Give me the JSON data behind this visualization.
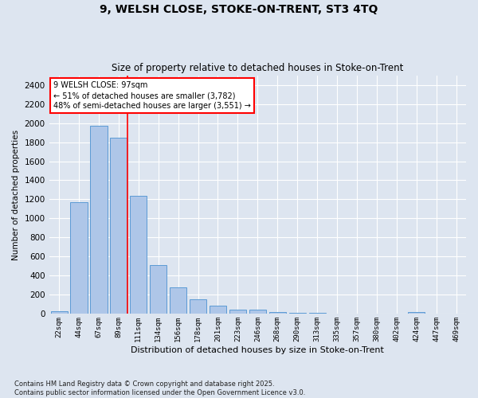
{
  "title_line1": "9, WELSH CLOSE, STOKE-ON-TRENT, ST3 4TQ",
  "title_line2": "Size of property relative to detached houses in Stoke-on-Trent",
  "xlabel": "Distribution of detached houses by size in Stoke-on-Trent",
  "ylabel": "Number of detached properties",
  "categories": [
    "22sqm",
    "44sqm",
    "67sqm",
    "89sqm",
    "111sqm",
    "134sqm",
    "156sqm",
    "178sqm",
    "201sqm",
    "223sqm",
    "246sqm",
    "268sqm",
    "290sqm",
    "313sqm",
    "335sqm",
    "357sqm",
    "380sqm",
    "402sqm",
    "424sqm",
    "447sqm",
    "469sqm"
  ],
  "values": [
    25,
    1170,
    1970,
    1850,
    1240,
    510,
    275,
    155,
    90,
    48,
    42,
    22,
    15,
    12,
    0,
    0,
    0,
    0,
    18,
    0,
    0
  ],
  "bar_color": "#aec6e8",
  "bar_edge_color": "#5b9bd5",
  "background_color": "#dde5f0",
  "grid_color": "#ffffff",
  "annotation_text": "9 WELSH CLOSE: 97sqm\n← 51% of detached houses are smaller (3,782)\n48% of semi-detached houses are larger (3,551) →",
  "vline_color": "red",
  "vline_x": 3.43,
  "ylim": [
    0,
    2500
  ],
  "yticks": [
    0,
    200,
    400,
    600,
    800,
    1000,
    1200,
    1400,
    1600,
    1800,
    2000,
    2200,
    2400
  ],
  "footer_line1": "Contains HM Land Registry data © Crown copyright and database right 2025.",
  "footer_line2": "Contains public sector information licensed under the Open Government Licence v3.0."
}
